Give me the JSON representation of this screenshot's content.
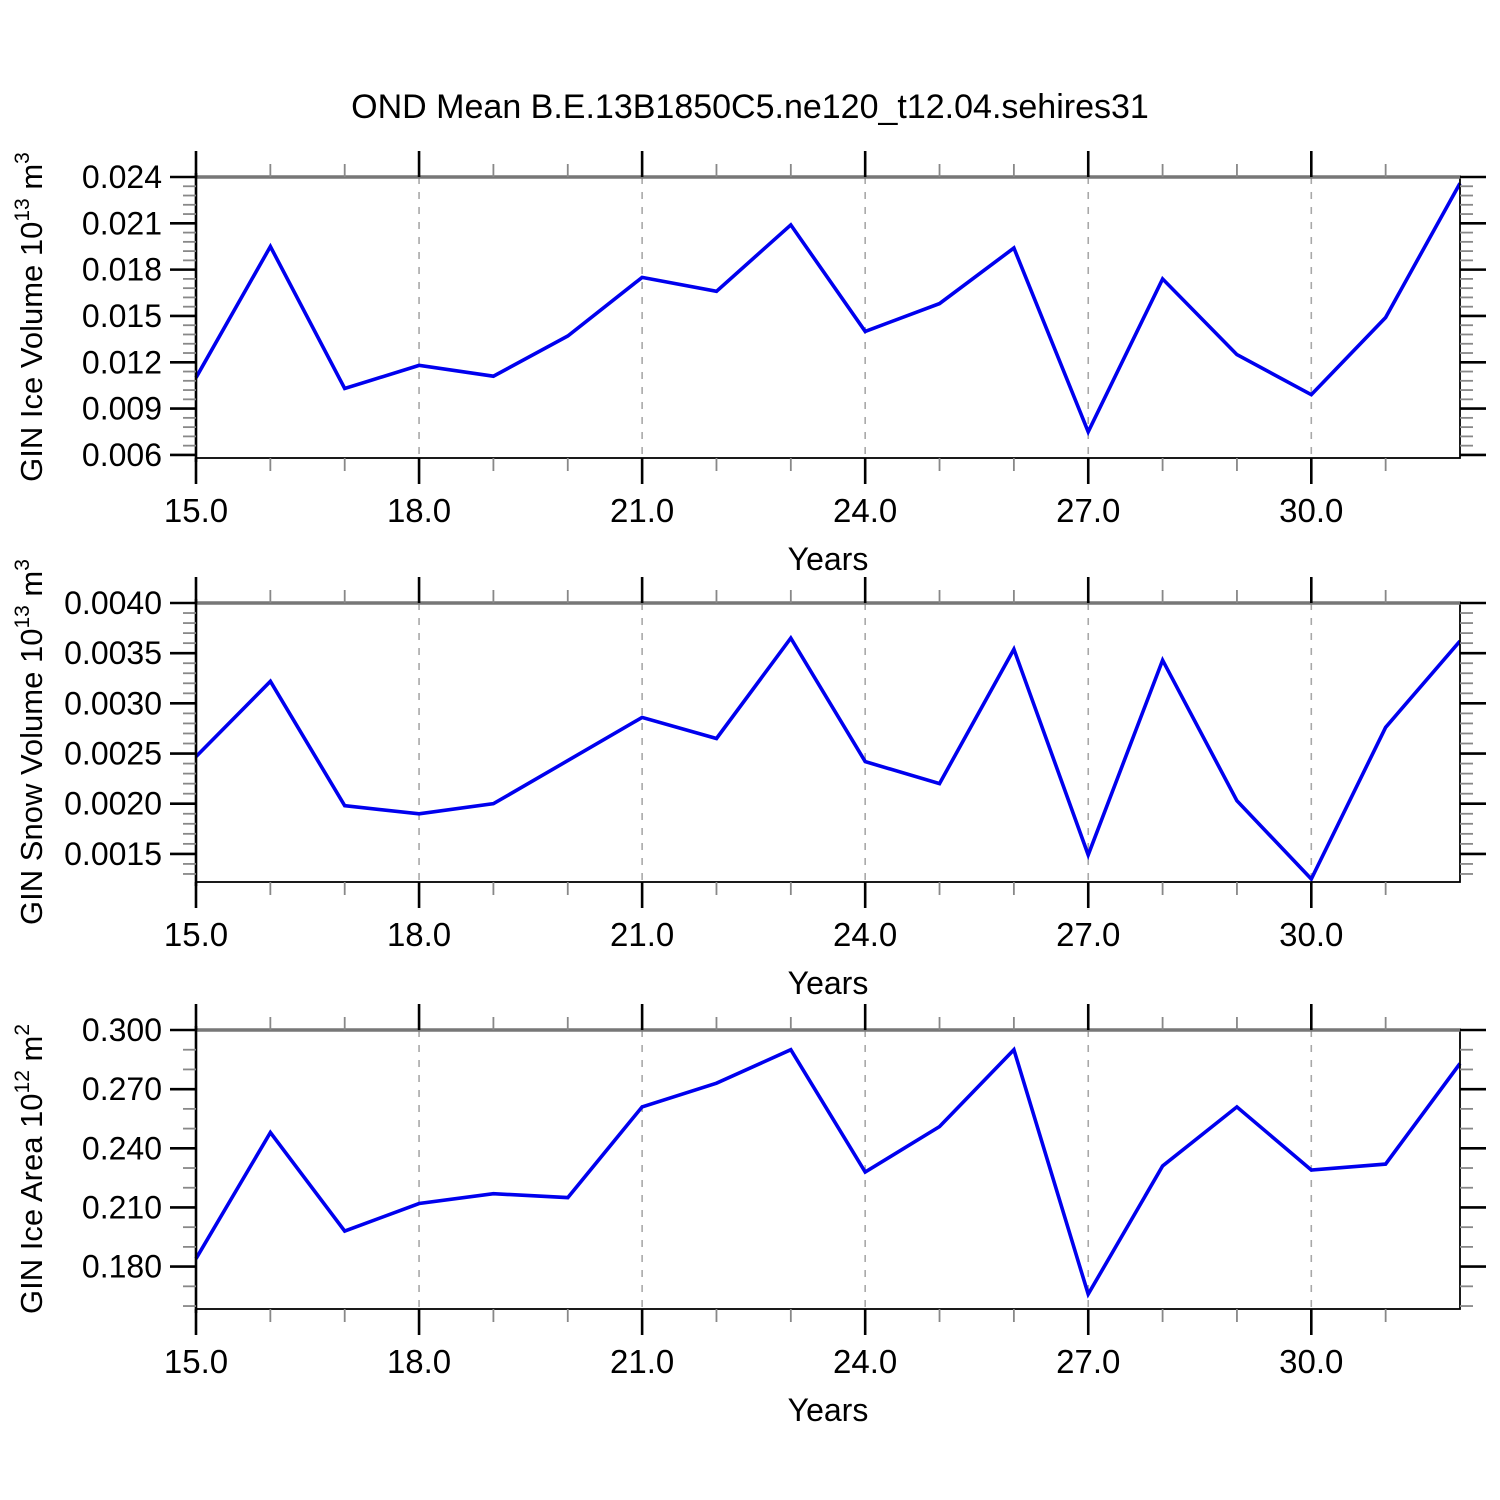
{
  "title": "OND Mean B.E.13B1850C5.ne120_t12.04.sehires31",
  "colors": {
    "line": "#0000ee",
    "grid": "#a8a8a8",
    "frame": "#000000",
    "frame_top": "#777777",
    "minor_tick": "#888888"
  },
  "chart_data": [
    {
      "type": "line",
      "series_name": "GIN Ice Volume",
      "ylabel": "GIN Ice Volume 10^13 m^3",
      "ylabel_parts": {
        "base": "GIN Ice Volume 10",
        "sup1": "13",
        "mid": " m",
        "sup2": "3"
      },
      "xlabel": "Years",
      "x": [
        15,
        16,
        17,
        18,
        19,
        20,
        21,
        22,
        23,
        24,
        25,
        26,
        27,
        28,
        29,
        30,
        31,
        32
      ],
      "values": [
        0.011,
        0.0195,
        0.0103,
        0.0118,
        0.0111,
        0.0137,
        0.0175,
        0.0166,
        0.0209,
        0.014,
        0.0158,
        0.0194,
        0.0075,
        0.0174,
        0.0125,
        0.0099,
        0.0149,
        0.0236
      ],
      "xlim": [
        15,
        32
      ],
      "ylim": [
        0.0058,
        0.024
      ],
      "xtick_values": [
        15,
        18,
        21,
        24,
        27,
        30
      ],
      "xtick_labels": [
        "15.0",
        "18.0",
        "21.0",
        "24.0",
        "27.0",
        "30.0"
      ],
      "ytick_values": [
        0.006,
        0.009,
        0.012,
        0.015,
        0.018,
        0.021,
        0.024
      ],
      "ytick_labels": [
        "0.006",
        "0.009",
        "0.012",
        "0.015",
        "0.018",
        "0.021",
        "0.024"
      ],
      "x_minor_step": 1,
      "y_minor_step": 0.0006,
      "grid_x": [
        18,
        21,
        24,
        27,
        30
      ],
      "grid_on": true,
      "legend": "none"
    },
    {
      "type": "line",
      "series_name": "GIN Snow Volume",
      "ylabel": "GIN Snow Volume 10^13 m^3",
      "ylabel_parts": {
        "base": "GIN Snow Volume 10",
        "sup1": "13",
        "mid": " m",
        "sup2": "3"
      },
      "xlabel": "Years",
      "x": [
        15,
        16,
        17,
        18,
        19,
        20,
        21,
        22,
        23,
        24,
        25,
        26,
        27,
        28,
        29,
        30,
        31,
        32
      ],
      "values": [
        0.00247,
        0.00322,
        0.00198,
        0.0019,
        0.002,
        0.00243,
        0.00286,
        0.00265,
        0.00365,
        0.00242,
        0.0022,
        0.00354,
        0.00149,
        0.00343,
        0.00203,
        0.00125,
        0.00276,
        0.00362
      ],
      "xlim": [
        15,
        32
      ],
      "ylim": [
        0.00122,
        0.004
      ],
      "xtick_values": [
        15,
        18,
        21,
        24,
        27,
        30
      ],
      "xtick_labels": [
        "15.0",
        "18.0",
        "21.0",
        "24.0",
        "27.0",
        "30.0"
      ],
      "ytick_values": [
        0.0015,
        0.002,
        0.0025,
        0.003,
        0.0035,
        0.004
      ],
      "ytick_labels": [
        "0.0015",
        "0.0020",
        "0.0025",
        "0.0030",
        "0.0035",
        "0.0040"
      ],
      "x_minor_step": 1,
      "y_minor_step": 0.0001,
      "grid_x": [
        18,
        21,
        24,
        27,
        30
      ],
      "grid_on": true,
      "legend": "none"
    },
    {
      "type": "line",
      "series_name": "GIN Ice Area",
      "ylabel": "GIN Ice Area 10^12 m^2",
      "ylabel_parts": {
        "base": "GIN Ice Area 10",
        "sup1": "12",
        "mid": " m",
        "sup2": "2"
      },
      "xlabel": "Years",
      "x": [
        15,
        16,
        17,
        18,
        19,
        20,
        21,
        22,
        23,
        24,
        25,
        26,
        27,
        28,
        29,
        30,
        31,
        32
      ],
      "values": [
        0.184,
        0.248,
        0.198,
        0.212,
        0.217,
        0.215,
        0.261,
        0.273,
        0.29,
        0.228,
        0.251,
        0.29,
        0.166,
        0.231,
        0.261,
        0.229,
        0.232,
        0.283
      ],
      "xlim": [
        15,
        32
      ],
      "ylim": [
        0.1585,
        0.3
      ],
      "xtick_values": [
        15,
        18,
        21,
        24,
        27,
        30
      ],
      "xtick_labels": [
        "15.0",
        "18.0",
        "21.0",
        "24.0",
        "27.0",
        "30.0"
      ],
      "ytick_values": [
        0.18,
        0.21,
        0.24,
        0.27,
        0.3
      ],
      "ytick_labels": [
        "0.180",
        "0.210",
        "0.240",
        "0.270",
        "0.300"
      ],
      "x_minor_step": 1,
      "y_minor_step": 0.01,
      "grid_x": [
        18,
        21,
        24,
        27,
        30
      ],
      "grid_on": true,
      "legend": "none"
    }
  ]
}
